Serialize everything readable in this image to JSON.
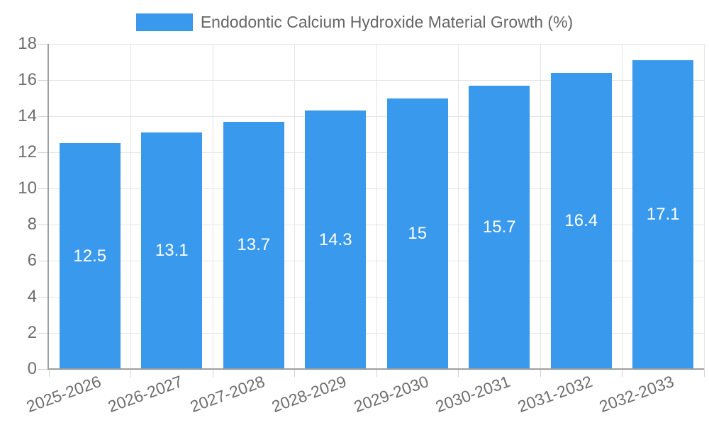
{
  "chart_data": {
    "type": "bar",
    "title": "Endodontic Calcium Hydroxide Material Growth (%)",
    "legend": {
      "label": "Endodontic Calcium Hydroxide Material Growth (%)",
      "position": "top"
    },
    "categories": [
      "2025-2026",
      "2026-2027",
      "2027-2028",
      "2028-2029",
      "2029-2030",
      "2030-2031",
      "2031-2032",
      "2032-2033"
    ],
    "values": [
      12.5,
      13.1,
      13.7,
      14.3,
      15,
      15.7,
      16.4,
      17.1
    ],
    "value_labels": [
      "12.5",
      "13.1",
      "13.7",
      "14.3",
      "15",
      "15.7",
      "16.4",
      "17.1"
    ],
    "xlabel": "",
    "ylabel": "",
    "ylim": [
      0,
      18
    ],
    "ytick_step": 2,
    "yticks": [
      0,
      2,
      4,
      6,
      8,
      10,
      12,
      14,
      16,
      18
    ],
    "grid": true,
    "x_label_rotation_deg": -20,
    "colors": {
      "bar": "#3999ED",
      "value_text": "#ffffff",
      "axis_text": "#6e6e6e",
      "legend_text": "#666666",
      "grid_line": "#e5e5e5",
      "tick_line": "#d2d2d2",
      "axis_line": "#9e9e9e",
      "background": "#ffffff"
    }
  }
}
